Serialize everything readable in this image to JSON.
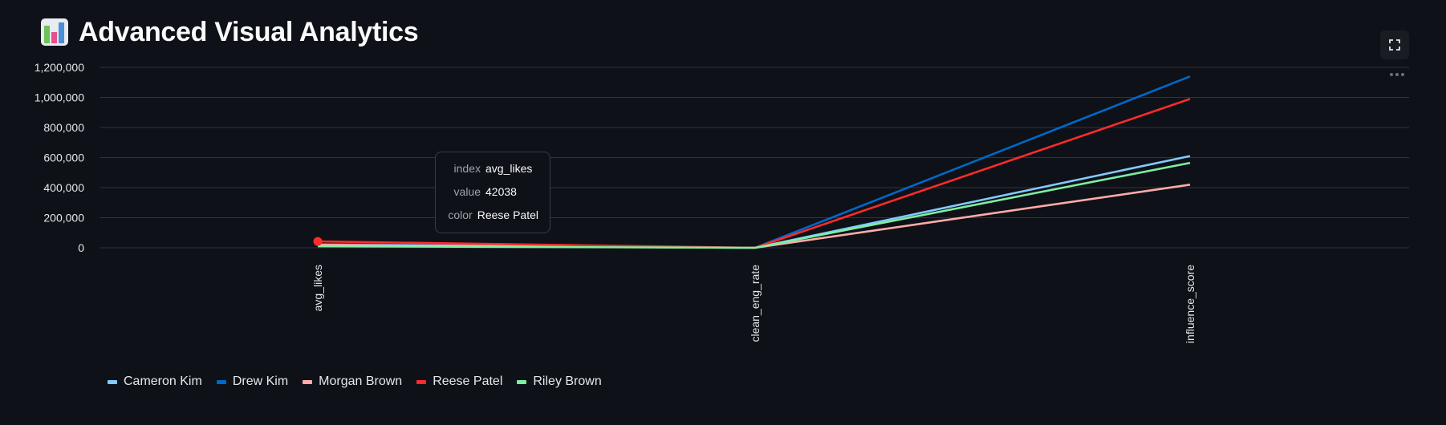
{
  "page": {
    "title": "Advanced Visual Analytics",
    "title_icon": "bar-chart-emoji-icon"
  },
  "toolbar": {
    "fullscreen_icon": "fullscreen-icon",
    "more_icon": "more-options-icon"
  },
  "chart_data": {
    "type": "line",
    "title": "",
    "xlabel": "",
    "ylabel": "",
    "categories": [
      "avg_likes",
      "clean_eng_rate",
      "influence_score"
    ],
    "ylim": [
      0,
      1200000
    ],
    "yticks": [
      0,
      200000,
      400000,
      600000,
      800000,
      1000000,
      1200000
    ],
    "ytick_labels": [
      "0",
      "200,000",
      "400,000",
      "600,000",
      "800,000",
      "1,000,000",
      "1,200,000"
    ],
    "grid": true,
    "legend_position": "bottom-left",
    "series": [
      {
        "name": "Cameron Kim",
        "color": "#83c9ff",
        "values": [
          15000,
          5,
          610000
        ]
      },
      {
        "name": "Drew Kim",
        "color": "#0068c9",
        "values": [
          25000,
          5,
          1140000
        ]
      },
      {
        "name": "Morgan Brown",
        "color": "#ffabab",
        "values": [
          20000,
          5,
          420000
        ]
      },
      {
        "name": "Reese Patel",
        "color": "#ff2b2b",
        "values": [
          42038,
          5,
          990000
        ]
      },
      {
        "name": "Riley Brown",
        "color": "#7defa1",
        "values": [
          10000,
          5,
          565000
        ]
      }
    ],
    "highlight": {
      "series": "Reese Patel",
      "category": "avg_likes",
      "value": 42038
    }
  },
  "tooltip": {
    "rows": [
      {
        "key": "index",
        "value": "avg_likes"
      },
      {
        "key": "value",
        "value": "42038"
      },
      {
        "key": "color",
        "value": "Reese Patel"
      }
    ]
  }
}
